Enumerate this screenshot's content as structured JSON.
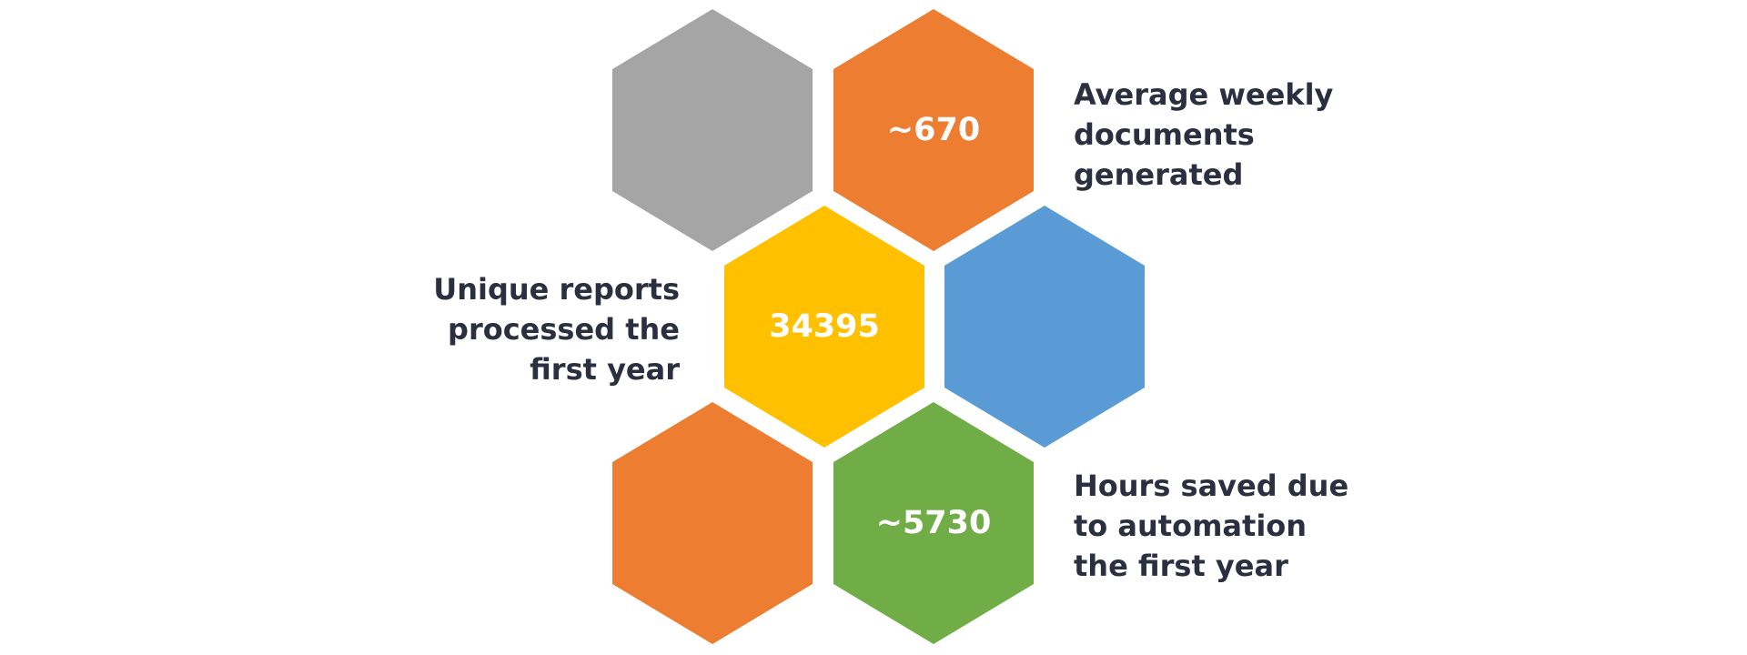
{
  "colors": {
    "gray": "#a5a5a5",
    "orange": "#ed7d31",
    "yellow": "#ffc000",
    "blue": "#5b9bd5",
    "green": "#70ad47",
    "text": "#2b3040"
  },
  "hexagons": [
    {
      "id": "gray-top",
      "color": "#a5a5a5",
      "value": ""
    },
    {
      "id": "orange-top",
      "color": "#ed7d31",
      "value": "~670"
    },
    {
      "id": "yellow-middle",
      "color": "#ffc000",
      "value": "34395"
    },
    {
      "id": "blue-middle",
      "color": "#5b9bd5",
      "value": ""
    },
    {
      "id": "orange-bottom",
      "color": "#ed7d31",
      "value": ""
    },
    {
      "id": "green-bottom",
      "color": "#70ad47",
      "value": "~5730"
    }
  ],
  "labels": {
    "weekly_docs": [
      "Average weekly",
      "documents",
      "generated"
    ],
    "unique_reports": [
      "Unique reports",
      "processed the",
      "first year"
    ],
    "hours_saved": [
      "Hours saved due",
      "to automation",
      "the first year"
    ]
  }
}
